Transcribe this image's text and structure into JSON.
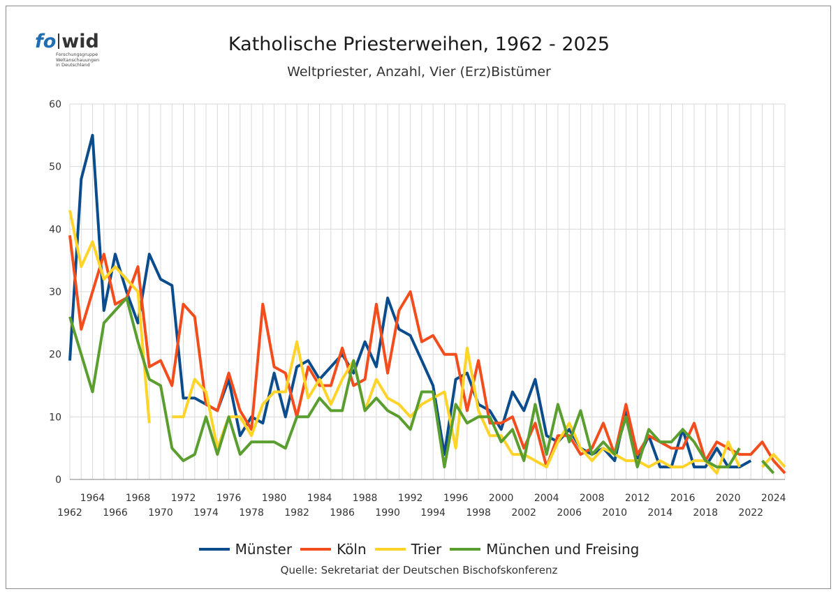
{
  "logo": {
    "fo": "fo",
    "wid": "wid",
    "line1": "Forschungsgruppe",
    "line2": "Weltanschauungen",
    "line3": "in Deutschland"
  },
  "source": "Quelle: Sekretariat der Deutschen Bischofskonferenz",
  "colors": {
    "grid": "#d9d9d9",
    "axis": "#7f7f7f"
  },
  "chart_data": {
    "type": "line",
    "title": "Katholische Priesterweihen, 1962 - 2025",
    "subtitle": "Weltpriester, Anzahl, Vier (Erz)Bistümer",
    "xlabel": "",
    "ylabel": "",
    "ylim": [
      0,
      60
    ],
    "yticks": [
      0,
      10,
      20,
      30,
      40,
      50,
      60
    ],
    "xlim": [
      1962,
      2025
    ],
    "xticks_upper": [
      1964,
      1968,
      1972,
      1976,
      1980,
      1984,
      1988,
      1992,
      1996,
      2000,
      2004,
      2008,
      2012,
      2016,
      2020,
      2024
    ],
    "xticks_lower": [
      1962,
      1966,
      1970,
      1974,
      1978,
      1982,
      1986,
      1990,
      1994,
      1998,
      2002,
      2006,
      2010,
      2014,
      2018,
      2022
    ],
    "x": [
      1962,
      1963,
      1964,
      1965,
      1966,
      1967,
      1968,
      1969,
      1970,
      1971,
      1972,
      1973,
      1974,
      1975,
      1976,
      1977,
      1978,
      1979,
      1980,
      1981,
      1982,
      1983,
      1984,
      1985,
      1986,
      1987,
      1988,
      1989,
      1990,
      1991,
      1992,
      1993,
      1994,
      1995,
      1996,
      1997,
      1998,
      1999,
      2000,
      2001,
      2002,
      2003,
      2004,
      2005,
      2006,
      2007,
      2008,
      2009,
      2010,
      2011,
      2012,
      2013,
      2014,
      2015,
      2016,
      2017,
      2018,
      2019,
      2020,
      2021,
      2022,
      2023,
      2024,
      2025
    ],
    "series": [
      {
        "name": "Münster",
        "color": "#0b4c8c",
        "values": [
          19,
          48,
          55,
          27,
          36,
          30,
          25,
          36,
          32,
          31,
          13,
          13,
          12,
          11,
          16,
          7,
          10,
          9,
          17,
          10,
          18,
          19,
          16,
          18,
          20,
          17,
          22,
          18,
          29,
          24,
          23,
          19,
          15,
          4,
          16,
          17,
          12,
          11,
          8,
          14,
          11,
          16,
          7,
          6,
          8,
          5,
          4,
          5,
          3,
          11,
          3,
          7,
          2,
          2,
          8,
          2,
          2,
          5,
          2,
          2,
          3,
          null,
          null,
          null
        ]
      },
      {
        "name": "Köln",
        "color": "#f24d1d",
        "values": [
          39,
          24,
          30,
          36,
          28,
          29,
          34,
          18,
          19,
          15,
          28,
          26,
          12,
          11,
          17,
          11,
          8,
          28,
          18,
          17,
          10,
          18,
          15,
          15,
          21,
          15,
          16,
          28,
          17,
          27,
          30,
          22,
          23,
          20,
          20,
          11,
          19,
          9,
          9,
          10,
          5,
          9,
          2,
          7,
          7,
          4,
          5,
          9,
          4,
          12,
          4,
          7,
          6,
          5,
          5,
          9,
          3,
          6,
          5,
          4,
          4,
          6,
          3,
          1
        ]
      },
      {
        "name": "Trier",
        "color": "#ffd42a",
        "values": [
          43,
          34,
          38,
          32,
          34,
          32,
          30,
          9,
          null,
          10,
          10,
          16,
          14,
          5,
          10,
          10,
          7,
          12,
          14,
          14,
          22,
          13,
          16,
          12,
          16,
          19,
          11,
          16,
          13,
          12,
          10,
          12,
          13,
          14,
          5,
          21,
          11,
          7,
          7,
          4,
          4,
          3,
          2,
          6,
          9,
          5,
          3,
          5,
          4,
          3,
          3,
          2,
          3,
          2,
          2,
          3,
          3,
          1,
          6,
          2,
          null,
          2,
          4,
          2
        ]
      },
      {
        "name": "München und Freising",
        "color": "#5a9e2f",
        "values": [
          26,
          20,
          14,
          25,
          27,
          29,
          22,
          16,
          15,
          5,
          3,
          4,
          10,
          4,
          10,
          4,
          6,
          6,
          6,
          5,
          10,
          10,
          13,
          11,
          11,
          19,
          11,
          13,
          11,
          10,
          8,
          14,
          14,
          2,
          12,
          9,
          10,
          10,
          6,
          8,
          3,
          12,
          4,
          12,
          6,
          11,
          4,
          6,
          4,
          10,
          2,
          8,
          6,
          6,
          8,
          6,
          3,
          2,
          2,
          5,
          null,
          3,
          1,
          null
        ]
      }
    ]
  }
}
